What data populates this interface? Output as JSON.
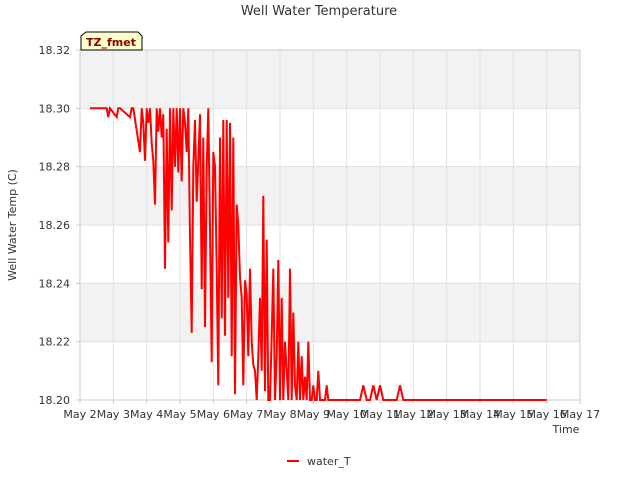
{
  "chart_data": {
    "type": "line",
    "title": "Well Water Temperature",
    "xlabel": "Time",
    "ylabel": "Well Water Temp (C)",
    "site_label": "TZ_fmet",
    "colors": {
      "series": "#ff0000",
      "band": "#f2f2f2",
      "grid": "#e0e0e0",
      "axis": "#cccccc",
      "site_bg": "#ffffcc",
      "site_border": "#000000"
    },
    "xlim": [
      2,
      17
    ],
    "ylim": [
      18.2,
      18.32
    ],
    "x_ticks": [
      2,
      3,
      4,
      5,
      6,
      7,
      8,
      9,
      10,
      11,
      12,
      13,
      14,
      15,
      16,
      17
    ],
    "x_tick_labels": [
      "May 2",
      "May 3",
      "May 4",
      "May 5",
      "May 6",
      "May 7",
      "May 8",
      "May 9",
      "May 10",
      "May 11",
      "May 12",
      "May 13",
      "May 14",
      "May 15",
      "May 16",
      "May 17"
    ],
    "y_ticks": [
      18.2,
      18.22,
      18.24,
      18.26,
      18.28,
      18.3,
      18.32
    ],
    "y_tick_labels": [
      "18.20",
      "18.22",
      "18.24",
      "18.26",
      "18.28",
      "18.30",
      "18.32"
    ],
    "series": [
      {
        "name": "water_T",
        "x": [
          2.3,
          2.8,
          2.85,
          2.9,
          3.1,
          3.15,
          3.2,
          3.5,
          3.55,
          3.6,
          3.8,
          3.85,
          3.9,
          3.95,
          4.0,
          4.05,
          4.1,
          4.15,
          4.2,
          4.25,
          4.3,
          4.35,
          4.4,
          4.45,
          4.5,
          4.55,
          4.6,
          4.65,
          4.7,
          4.75,
          4.8,
          4.85,
          4.9,
          4.95,
          5.0,
          5.05,
          5.1,
          5.15,
          5.2,
          5.25,
          5.3,
          5.35,
          5.4,
          5.45,
          5.5,
          5.55,
          5.6,
          5.65,
          5.7,
          5.75,
          5.8,
          5.85,
          5.9,
          5.95,
          6.0,
          6.05,
          6.1,
          6.15,
          6.2,
          6.25,
          6.3,
          6.35,
          6.4,
          6.45,
          6.5,
          6.55,
          6.6,
          6.65,
          6.7,
          6.75,
          6.8,
          6.85,
          6.9,
          6.95,
          7.0,
          7.05,
          7.1,
          7.15,
          7.2,
          7.25,
          7.3,
          7.35,
          7.4,
          7.45,
          7.5,
          7.55,
          7.6,
          7.65,
          7.7,
          7.75,
          7.8,
          7.85,
          7.9,
          7.95,
          8.0,
          8.05,
          8.1,
          8.15,
          8.2,
          8.25,
          8.3,
          8.35,
          8.4,
          8.45,
          8.5,
          8.55,
          8.6,
          8.65,
          8.7,
          8.75,
          8.8,
          8.85,
          8.9,
          8.95,
          9.0,
          9.05,
          9.1,
          9.15,
          9.2,
          9.25,
          9.3,
          9.35,
          9.4,
          9.45,
          9.5,
          9.55,
          9.6,
          9.65,
          9.7,
          9.75,
          9.8,
          9.85,
          9.9,
          9.95,
          10.0,
          10.05,
          10.1,
          10.15,
          10.2,
          10.25,
          10.3,
          10.35,
          10.4,
          10.5,
          10.6,
          10.7,
          10.8,
          10.9,
          11.0,
          11.1,
          11.2,
          11.3,
          11.5,
          11.6,
          11.7,
          11.8,
          12.1,
          12.2,
          12.5,
          12.6,
          12.7,
          12.8,
          13.0,
          13.2,
          13.3,
          13.4,
          13.6,
          16.0
        ],
        "y": [
          18.3,
          18.3,
          18.297,
          18.3,
          18.297,
          18.3,
          18.3,
          18.297,
          18.3,
          18.3,
          18.285,
          18.3,
          18.295,
          18.282,
          18.3,
          18.295,
          18.3,
          18.288,
          18.282,
          18.267,
          18.3,
          18.292,
          18.3,
          18.29,
          18.298,
          18.245,
          18.293,
          18.254,
          18.3,
          18.265,
          18.3,
          18.28,
          18.3,
          18.278,
          18.3,
          18.275,
          18.3,
          18.295,
          18.285,
          18.3,
          18.256,
          18.223,
          18.28,
          18.296,
          18.268,
          18.282,
          18.298,
          18.238,
          18.29,
          18.225,
          18.28,
          18.3,
          18.258,
          18.213,
          18.285,
          18.28,
          18.245,
          18.205,
          18.29,
          18.228,
          18.296,
          18.222,
          18.296,
          18.235,
          18.295,
          18.215,
          18.29,
          18.202,
          18.267,
          18.26,
          18.242,
          18.235,
          18.205,
          18.241,
          18.236,
          18.215,
          18.245,
          18.22,
          18.212,
          18.21,
          18.2,
          18.215,
          18.235,
          18.21,
          18.27,
          18.203,
          18.255,
          18.2,
          18.2,
          18.222,
          18.245,
          18.2,
          18.215,
          18.248,
          18.2,
          18.235,
          18.2,
          18.22,
          18.21,
          18.2,
          18.245,
          18.2,
          18.23,
          18.205,
          18.2,
          18.22,
          18.2,
          18.215,
          18.2,
          18.208,
          18.2,
          18.22,
          18.2,
          18.2,
          18.205,
          18.2,
          18.2,
          18.21,
          18.2,
          18.2,
          18.2,
          18.2,
          18.205,
          18.2,
          18.2,
          18.2,
          18.2,
          18.2,
          18.2,
          18.2,
          18.2,
          18.2,
          18.2,
          18.2,
          18.2,
          18.2,
          18.2,
          18.2,
          18.2,
          18.2,
          18.2,
          18.2,
          18.2,
          18.205,
          18.2,
          18.2,
          18.205,
          18.2,
          18.205,
          18.2,
          18.2,
          18.2,
          18.2,
          18.205,
          18.2,
          18.2,
          18.2,
          18.2,
          18.2,
          18.2,
          18.2,
          18.2,
          18.2,
          18.2,
          18.2,
          18.2,
          18.2,
          18.2
        ],
        "color": "#ff0000"
      }
    ],
    "legend": [
      "water_T"
    ],
    "legend_position": "bottom-center"
  }
}
